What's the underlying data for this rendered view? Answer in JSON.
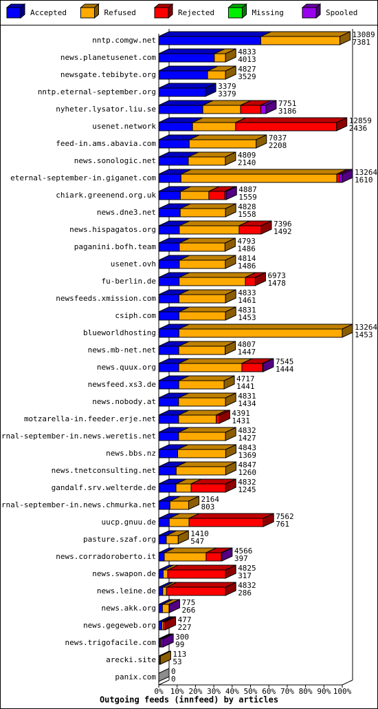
{
  "chart_data": {
    "type": "stacked-bar-3d",
    "orientation": "horizontal",
    "title": "Outgoing feeds (innfeed) by articles",
    "categories": [
      "nntp.comgw.net",
      "news.planetusenet.com",
      "newsgate.tebibyte.org",
      "nntp.eternal-september.org",
      "nyheter.lysator.liu.se",
      "usenet.network",
      "feed-in.ams.abavia.com",
      "news.sonologic.net",
      "eternal-september-in.giganet.com",
      "chiark.greenend.org.uk",
      "news.dne3.net",
      "news.hispagatos.org",
      "paganini.bofh.team",
      "usenet.ovh",
      "fu-berlin.de",
      "newsfeeds.xmission.com",
      "csiph.com",
      "blueworldhosting",
      "news.mb-net.net",
      "news.quux.org",
      "newsfeed.xs3.de",
      "news.nobody.at",
      "motzarella-in.feeder.erje.net",
      "eternal-september-in.news.weretis.net",
      "news.bbs.nz",
      "news.tnetconsulting.net",
      "gandalf.srv.welterde.de",
      "eternal-september-in.news.chmurka.net",
      "uucp.gnuu.de",
      "pasture.szaf.org",
      "news.corradoroberto.it",
      "news.swapon.de",
      "news.leine.de",
      "news.akk.org",
      "news.gegeweb.org",
      "news.trigofacile.com",
      "arecki.site",
      "panix.com"
    ],
    "offered": [
      13089,
      4833,
      4827,
      3379,
      7751,
      12859,
      7037,
      4809,
      13264,
      4887,
      4828,
      7396,
      4793,
      4814,
      6973,
      4833,
      4831,
      13264,
      4807,
      7545,
      4717,
      4831,
      4391,
      4832,
      4843,
      4847,
      4832,
      2164,
      7562,
      1410,
      4566,
      4825,
      4832,
      775,
      477,
      300,
      113,
      0
    ],
    "accepted": [
      7381,
      4013,
      3529,
      3379,
      3186,
      2436,
      2208,
      2140,
      1610,
      1559,
      1558,
      1492,
      1486,
      1486,
      1478,
      1461,
      1453,
      1453,
      1447,
      1444,
      1441,
      1434,
      1431,
      1427,
      1369,
      1260,
      1245,
      803,
      761,
      547,
      397,
      317,
      286,
      266,
      227,
      99,
      53,
      0
    ],
    "series": [
      {
        "name": "Accepted",
        "color": "#0000ff",
        "values": [
          55.6,
          30.3,
          26.6,
          25.5,
          24.0,
          18.4,
          16.6,
          16.1,
          12.1,
          11.8,
          11.7,
          11.2,
          11.2,
          11.2,
          11.1,
          11.0,
          11.0,
          11.0,
          10.9,
          10.9,
          10.9,
          10.8,
          10.8,
          10.8,
          10.3,
          9.5,
          9.4,
          6.1,
          5.7,
          4.1,
          3.0,
          2.4,
          2.2,
          2.0,
          1.7,
          0.7,
          0.4,
          0
        ]
      },
      {
        "name": "Refused",
        "color": "#ffaa00",
        "values": [
          43.1,
          6.1,
          9.8,
          0,
          20.6,
          23.5,
          36.5,
          20.2,
          84.9,
          15.5,
          24.7,
          32.6,
          24.9,
          25.1,
          36.1,
          25.4,
          25.4,
          89.0,
          25.3,
          34.4,
          24.7,
          25.6,
          20.5,
          25.6,
          26.2,
          27.0,
          8.2,
          10.2,
          10.8,
          6.5,
          22.8,
          2.5,
          2.0,
          3.6,
          0.9,
          0.5,
          0.5,
          0
        ]
      },
      {
        "name": "Rejected",
        "color": "#ff0000",
        "values": [
          0,
          0,
          0,
          0,
          11,
          55,
          0,
          0,
          1.5,
          8.7,
          0,
          12,
          0,
          0,
          5.4,
          0,
          0,
          0,
          0,
          11.3,
          0,
          0,
          1.8,
          0,
          0,
          0,
          18.8,
          0,
          40.5,
          0,
          8.3,
          31.5,
          32.2,
          0,
          1.0,
          0,
          0,
          0
        ]
      },
      {
        "name": "Missing",
        "color": "#00ee00",
        "values": [
          0,
          0,
          0,
          0,
          0,
          0,
          0,
          0,
          0,
          0,
          0,
          0,
          0,
          0,
          0,
          0,
          0,
          0,
          0,
          0,
          0,
          0,
          0,
          0,
          0,
          0,
          0,
          0,
          0,
          0,
          0,
          0,
          0,
          0,
          0,
          0,
          0,
          0
        ]
      },
      {
        "name": "Spooled",
        "color": "#9900ee",
        "values": [
          0,
          0,
          0,
          0,
          2.8,
          0,
          0,
          0,
          1.5,
          0.8,
          0,
          0,
          0,
          0,
          0,
          0,
          0,
          0,
          0,
          0.3,
          0,
          0,
          0,
          0,
          0,
          0,
          0,
          0,
          0,
          0,
          0.3,
          0,
          0,
          0.2,
          0,
          1.1,
          0,
          0
        ]
      }
    ],
    "xlim": [
      0,
      100
    ],
    "xticks": [
      {
        "value": 0,
        "label": "0%"
      },
      {
        "value": 10,
        "label": "10%"
      },
      {
        "value": 20,
        "label": "20%"
      },
      {
        "value": 30,
        "label": "30%"
      },
      {
        "value": 40,
        "label": "40%"
      },
      {
        "value": 50,
        "label": "50%"
      },
      {
        "value": 60,
        "label": "60%"
      },
      {
        "value": 70,
        "label": "70%"
      },
      {
        "value": 80,
        "label": "80%"
      },
      {
        "value": 90,
        "label": "90%"
      },
      {
        "value": 100,
        "label": "100%"
      }
    ]
  }
}
